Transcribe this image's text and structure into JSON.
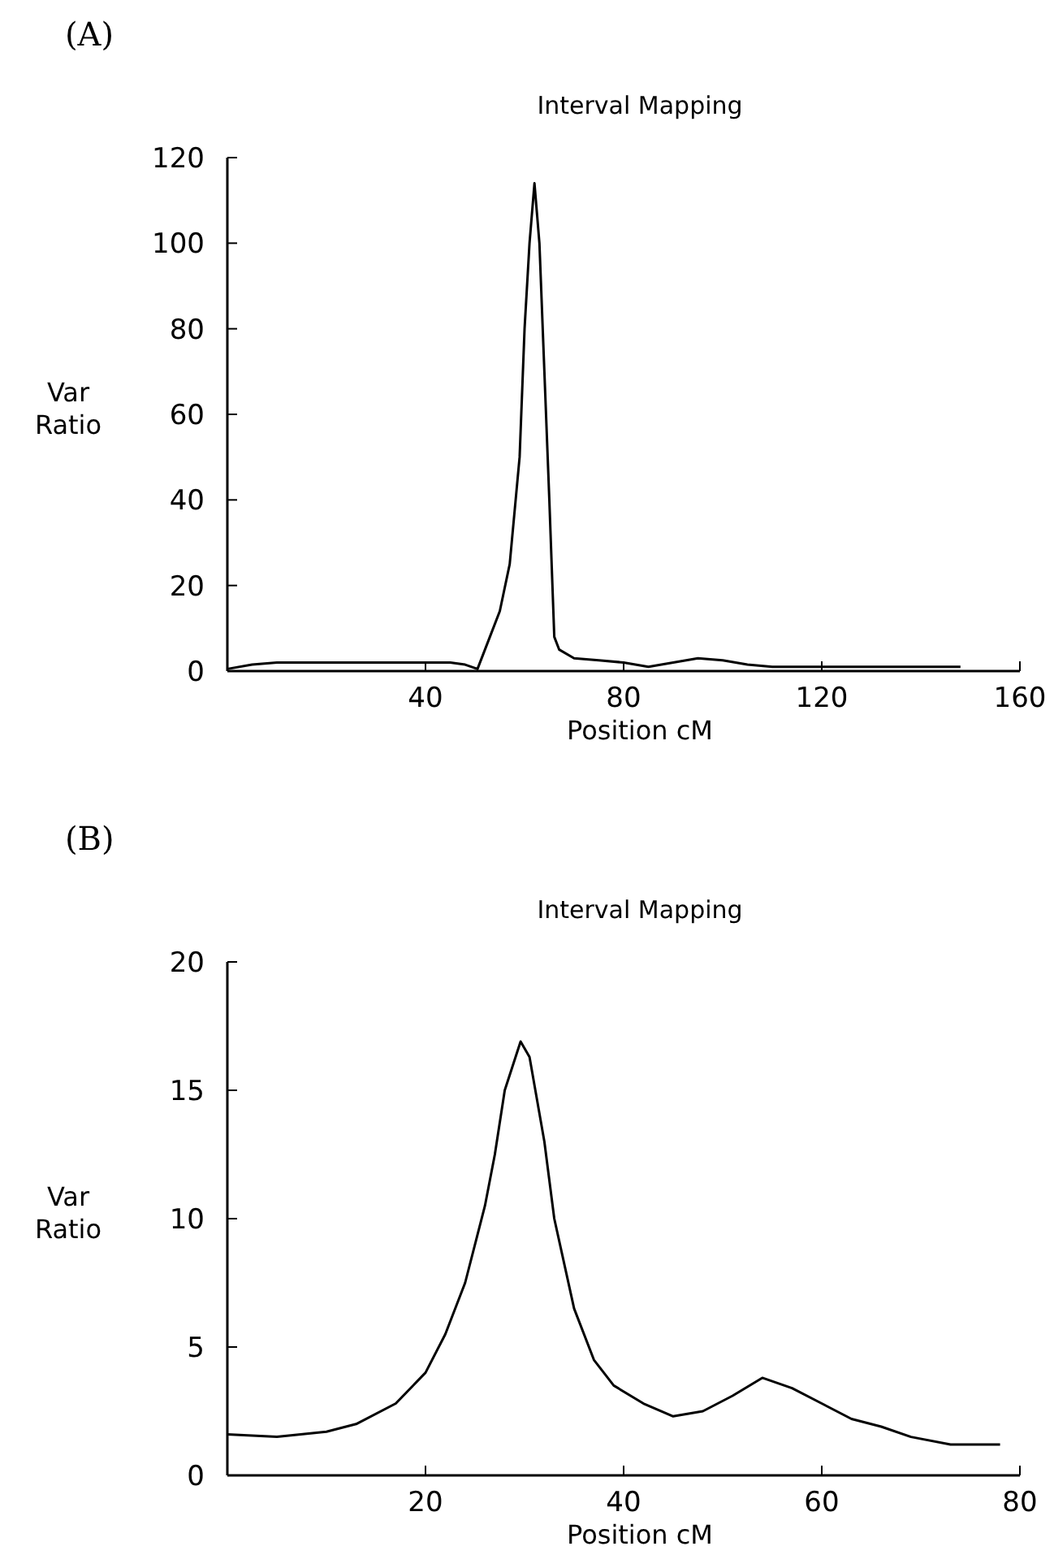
{
  "chart_data": [
    {
      "type": "line",
      "title": "Interval Mapping",
      "xlabel": "Position cM",
      "ylabel": "Var Ratio",
      "annotations": [
        "(A)"
      ],
      "series": [
        {
          "color": "#000000",
          "x": [
            0,
            5,
            10,
            30,
            45,
            48,
            50.5,
            53,
            55,
            57,
            59,
            60,
            61,
            62,
            63,
            64,
            65,
            66,
            67,
            70,
            75,
            80,
            85,
            90,
            95,
            100,
            105,
            110,
            130,
            148
          ],
          "values": [
            0.5,
            1.5,
            2,
            2,
            2,
            1.5,
            0.5,
            8,
            14,
            25,
            50,
            80,
            100,
            114,
            100,
            70,
            40,
            8,
            5,
            3,
            2.5,
            2,
            1,
            2,
            3,
            2.5,
            1.5,
            1,
            1,
            1
          ]
        }
      ],
      "xlim": [
        0,
        160
      ],
      "xticks": [
        40,
        80,
        120,
        160
      ],
      "ylim": [
        0,
        120
      ],
      "yticks": [
        0,
        20,
        40,
        60,
        80,
        100,
        120
      ],
      "grid": false,
      "marker": "none",
      "line_style": "solid"
    },
    {
      "type": "line",
      "title": "Interval Mapping",
      "xlabel": "Position cM",
      "ylabel": "Var Ratio",
      "annotations": [
        "(B)"
      ],
      "series": [
        {
          "color": "#000000",
          "x": [
            0,
            5,
            10,
            13,
            17,
            20,
            22,
            24,
            26,
            27,
            28,
            29.6,
            30.5,
            32,
            33,
            35,
            37,
            39,
            42,
            45,
            48,
            51,
            54,
            57,
            60,
            63,
            66,
            69,
            73,
            78
          ],
          "values": [
            1.6,
            1.5,
            1.7,
            2,
            2.8,
            4,
            5.5,
            7.5,
            10.5,
            12.5,
            15,
            16.9,
            16.3,
            13,
            10,
            6.5,
            4.5,
            3.5,
            2.8,
            2.3,
            2.5,
            3.1,
            3.8,
            3.4,
            2.8,
            2.2,
            1.9,
            1.5,
            1.2,
            1.2
          ]
        }
      ],
      "xlim": [
        0,
        80
      ],
      "xticks": [
        20,
        40,
        60,
        80
      ],
      "ylim": [
        0,
        20
      ],
      "yticks": [
        0,
        5,
        10,
        15,
        20
      ],
      "grid": false,
      "marker": "none",
      "line_style": "solid"
    }
  ]
}
